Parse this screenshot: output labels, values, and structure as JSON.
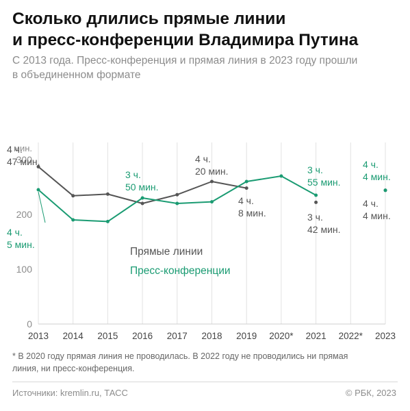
{
  "header": {
    "title_line1": "Сколько длились прямые линии",
    "title_line2": "и пресс-конференции Владимира Путина",
    "subtitle_line1": "С 2013 года. Пресс-конференция и прямая линия в 2023 году прошли",
    "subtitle_line2": "в объединенном формате"
  },
  "colors": {
    "direct_line": "#555555",
    "press_conference": "#1a9b72",
    "grid": "#e2e2e2",
    "axis_text": "#8c8c8c"
  },
  "chart_data": {
    "type": "line",
    "ylabel": "мин.",
    "ylim": [
      0,
      300
    ],
    "yticks": [
      0,
      100,
      200,
      300
    ],
    "categories": [
      "2013",
      "2014",
      "2015",
      "2016",
      "2017",
      "2018",
      "2019",
      "2020*",
      "2021",
      "2022*",
      "2023"
    ],
    "grid": "vertical",
    "series": [
      {
        "name": "Прямые линии",
        "color": "#555555",
        "values": [
          287,
          234,
          237,
          220,
          236,
          260,
          248,
          null,
          222,
          null,
          244
        ]
      },
      {
        "name": "Пресс-конференции",
        "color": "#1a9b72",
        "values": [
          245,
          190,
          187,
          230,
          220,
          223,
          260,
          270,
          235,
          null,
          244
        ]
      }
    ],
    "annotations": [
      {
        "series": 0,
        "x": "2013",
        "lines": [
          "4 ч.",
          "47 мин."
        ]
      },
      {
        "series": 1,
        "x": "2013",
        "lines": [
          "4 ч.",
          "5 мин."
        ]
      },
      {
        "series": 1,
        "x": "2016",
        "lines": [
          "3 ч.",
          "50 мин."
        ]
      },
      {
        "series": 0,
        "x": "2018",
        "lines": [
          "4 ч.",
          "20 мин."
        ]
      },
      {
        "series": 0,
        "x": "2019",
        "lines": [
          "4 ч.",
          "8 мин."
        ]
      },
      {
        "series": 1,
        "x": "2021",
        "lines": [
          "3 ч.",
          "55 мин."
        ]
      },
      {
        "series": 0,
        "x": "2021",
        "lines": [
          "3 ч.",
          "42 мин."
        ]
      },
      {
        "series": 1,
        "x": "2023",
        "lines": [
          "4 ч.",
          "4 мин."
        ]
      },
      {
        "series": 0,
        "x": "2023",
        "lines": [
          "4 ч.",
          "4 мин."
        ]
      }
    ]
  },
  "footer": {
    "footnote_line1": "* В 2020 году прямая линия не проводилась. В 2022 году не проводились ни прямая",
    "footnote_line2": "линия, ни пресс-конференция.",
    "source": "Источники: kremlin.ru, ТАСС",
    "copyright": "© РБК, 2023"
  }
}
